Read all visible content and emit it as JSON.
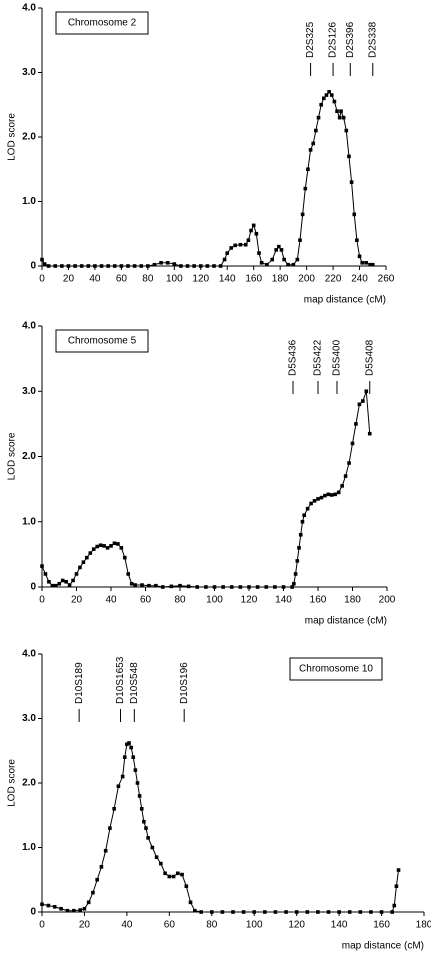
{
  "chart_data": [
    {
      "type": "line",
      "title": "Chromosome 2",
      "title_position": "top-left",
      "x_label": "map distance (cM)",
      "y_label": "LOD score",
      "color": "#000000",
      "xlim": [
        0,
        260
      ],
      "xticks": [
        0,
        20,
        40,
        60,
        80,
        100,
        120,
        140,
        160,
        180,
        200,
        220,
        240,
        260
      ],
      "ylim": [
        0,
        4
      ],
      "yticks": [
        0,
        {
          "value": 1,
          "label": "1.0"
        },
        {
          "value": 2,
          "label": "2.0"
        },
        {
          "value": 3,
          "label": "3.0"
        },
        {
          "value": 4,
          "label": "4.0"
        }
      ],
      "markers": [
        {
          "label": "D2S325",
          "x": 203
        },
        {
          "label": "D2S126",
          "x": 220
        },
        {
          "label": "D2S396",
          "x": 233
        },
        {
          "label": "D2S338",
          "x": 250
        }
      ],
      "x": [
        0,
        2,
        5,
        10,
        15,
        20,
        25,
        30,
        35,
        40,
        45,
        50,
        55,
        60,
        65,
        70,
        75,
        80,
        85,
        90,
        95,
        100,
        105,
        110,
        115,
        120,
        125,
        130,
        135,
        138,
        140,
        143,
        146,
        150,
        154,
        156,
        158,
        160,
        162,
        164,
        166,
        170,
        174,
        177,
        179,
        181,
        183,
        186,
        190,
        193,
        195,
        197,
        199,
        201,
        203,
        205,
        207,
        209,
        211,
        213,
        215,
        217,
        219,
        221,
        223,
        225,
        226,
        228,
        230,
        232,
        234,
        236,
        238,
        240,
        242,
        245,
        248,
        250
      ],
      "values": [
        0.1,
        0.03,
        0,
        0,
        0,
        0,
        0,
        0,
        0,
        0,
        0,
        0,
        0,
        0,
        0,
        0,
        0,
        0,
        0.02,
        0.05,
        0.05,
        0.03,
        0,
        0,
        0,
        0,
        0,
        0,
        0,
        0.1,
        0.2,
        0.28,
        0.32,
        0.33,
        0.33,
        0.4,
        0.55,
        0.63,
        0.5,
        0.2,
        0.05,
        0.02,
        0.1,
        0.25,
        0.3,
        0.25,
        0.1,
        0.02,
        0.02,
        0.1,
        0.4,
        0.8,
        1.2,
        1.5,
        1.8,
        1.9,
        2.1,
        2.3,
        2.5,
        2.6,
        2.65,
        2.7,
        2.65,
        2.55,
        2.4,
        2.3,
        2.4,
        2.3,
        2.1,
        1.7,
        1.3,
        0.8,
        0.4,
        0.15,
        0.05,
        0.05,
        0.02,
        0.02
      ]
    },
    {
      "type": "line",
      "title": "Chromosome 5",
      "title_position": "top-left",
      "x_label": "map distance (cM)",
      "y_label": "LOD score",
      "color": "#000000",
      "xlim": [
        0,
        200
      ],
      "xticks": [
        0,
        20,
        40,
        60,
        80,
        100,
        120,
        140,
        160,
        180,
        200
      ],
      "ylim": [
        0,
        4
      ],
      "yticks": [
        0,
        {
          "value": 1,
          "label": "1.0"
        },
        {
          "value": 2,
          "label": "2.0"
        },
        {
          "value": 3,
          "label": "3.0"
        },
        {
          "value": 4,
          "label": "4.0"
        }
      ],
      "markers": [
        {
          "label": "D5S436",
          "x": 145.5
        },
        {
          "label": "D5S422",
          "x": 160
        },
        {
          "label": "D5S400",
          "x": 171
        },
        {
          "label": "D5S408",
          "x": 190
        }
      ],
      "x": [
        0,
        2,
        4,
        6,
        8,
        10,
        12,
        14,
        16,
        18,
        20,
        22,
        24,
        26,
        28,
        30,
        32,
        34,
        36,
        38,
        40,
        42,
        44,
        46,
        48,
        50,
        52,
        54,
        58,
        62,
        66,
        70,
        75,
        80,
        85,
        90,
        95,
        100,
        105,
        110,
        115,
        120,
        125,
        130,
        135,
        140,
        145,
        146,
        147,
        148,
        149,
        150,
        151,
        152,
        154,
        156,
        158,
        160,
        162,
        164,
        166,
        168,
        170,
        172,
        174,
        176,
        178,
        180,
        182,
        184,
        186,
        188,
        190
      ],
      "values": [
        0.32,
        0.2,
        0.08,
        0.02,
        0.02,
        0.05,
        0.1,
        0.08,
        0.03,
        0.1,
        0.2,
        0.3,
        0.38,
        0.45,
        0.52,
        0.58,
        0.62,
        0.64,
        0.63,
        0.6,
        0.63,
        0.67,
        0.66,
        0.6,
        0.45,
        0.2,
        0.05,
        0.03,
        0.03,
        0.02,
        0.02,
        0,
        0.01,
        0.02,
        0.01,
        0,
        0,
        0,
        0,
        0,
        0,
        0,
        0,
        0,
        0,
        0,
        0,
        0.05,
        0.2,
        0.4,
        0.6,
        0.8,
        1.0,
        1.1,
        1.2,
        1.28,
        1.32,
        1.35,
        1.37,
        1.4,
        1.42,
        1.41,
        1.42,
        1.45,
        1.55,
        1.7,
        1.9,
        2.2,
        2.5,
        2.8,
        2.85,
        3.0,
        2.35
      ]
    },
    {
      "type": "line",
      "title": "Chromosome 10",
      "title_position": "top-right",
      "x_label": "map distance (cM)",
      "y_label": "LOD score",
      "color": "#000000",
      "xlim": [
        0,
        180
      ],
      "xticks": [
        0,
        20,
        40,
        60,
        80,
        100,
        120,
        140,
        160,
        180
      ],
      "ylim": [
        0,
        4
      ],
      "yticks": [
        0,
        {
          "value": 1,
          "label": "1.0"
        },
        {
          "value": 2,
          "label": "2.0"
        },
        {
          "value": 3,
          "label": "3.0"
        },
        {
          "value": 4,
          "label": "4.0"
        }
      ],
      "markers": [
        {
          "label": "D10S189",
          "x": 17.5
        },
        {
          "label": "D10S1653",
          "x": 37
        },
        {
          "label": "D10S548",
          "x": 43.5
        },
        {
          "label": "D10S196",
          "x": 67
        }
      ],
      "x": [
        0,
        3,
        6,
        9,
        12,
        15,
        18,
        20,
        22,
        24,
        26,
        28,
        30,
        32,
        34,
        36,
        38,
        39,
        40,
        41,
        42,
        43,
        44,
        45,
        46,
        47,
        48,
        49,
        50,
        52,
        54,
        56,
        58,
        60,
        62,
        64,
        66,
        68,
        70,
        72,
        75,
        80,
        85,
        90,
        95,
        100,
        105,
        110,
        115,
        120,
        125,
        130,
        135,
        140,
        145,
        150,
        155,
        160,
        165,
        166,
        167,
        168
      ],
      "values": [
        0.12,
        0.1,
        0.08,
        0.05,
        0.02,
        0.02,
        0.03,
        0.05,
        0.15,
        0.3,
        0.5,
        0.7,
        0.95,
        1.3,
        1.6,
        1.95,
        2.1,
        2.4,
        2.6,
        2.62,
        2.55,
        2.4,
        2.2,
        2.0,
        1.8,
        1.6,
        1.4,
        1.3,
        1.15,
        1.0,
        0.85,
        0.75,
        0.6,
        0.55,
        0.55,
        0.6,
        0.58,
        0.4,
        0.15,
        0.02,
        0,
        0,
        0,
        0,
        0,
        0,
        0,
        0,
        0,
        0,
        0,
        0,
        0,
        0,
        0,
        0,
        0,
        0,
        0,
        0.1,
        0.4,
        0.65
      ]
    }
  ]
}
